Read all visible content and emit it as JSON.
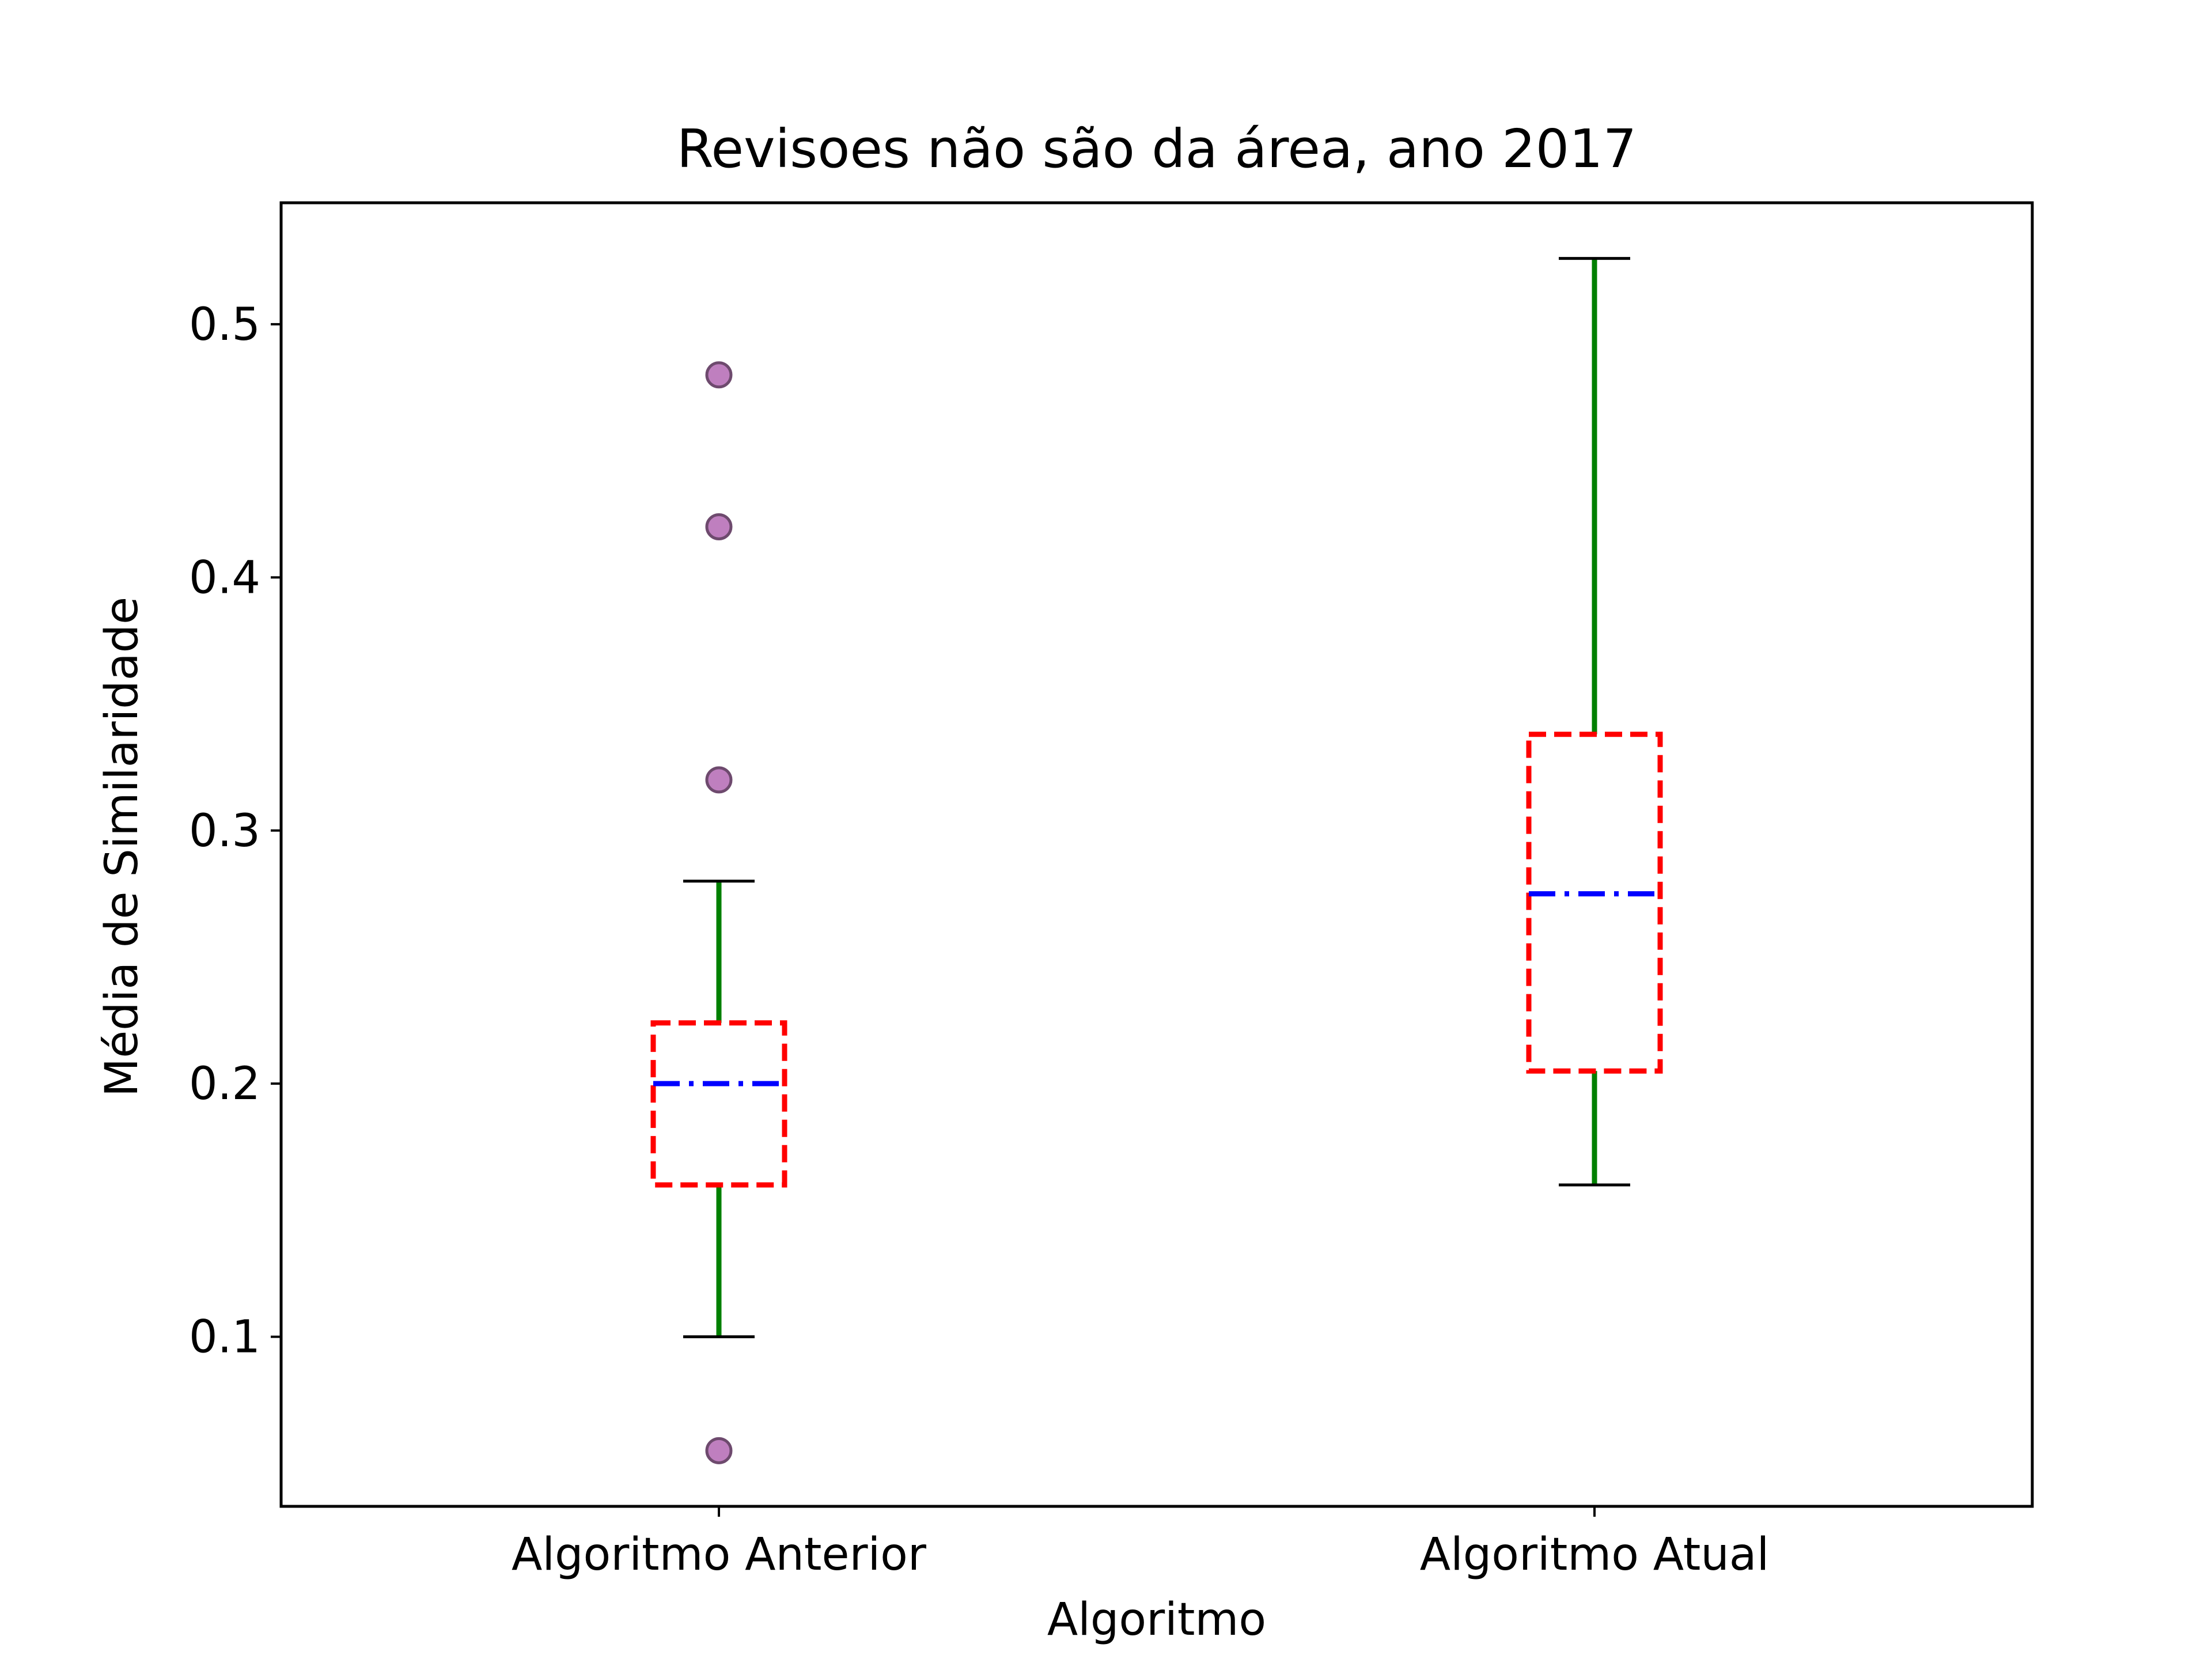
{
  "chart_data": {
    "type": "box",
    "title": "Revisoes não são da área, ano 2017",
    "xlabel": "Algoritmo",
    "ylabel": "Média de Similaridade",
    "ylim": [
      0.033,
      0.548
    ],
    "yticks": [
      0.1,
      0.2,
      0.3,
      0.4,
      0.5
    ],
    "ytick_labels": [
      "0.1",
      "0.2",
      "0.3",
      "0.4",
      "0.5"
    ],
    "grid": false,
    "categories": [
      "Algoritmo Anterior",
      "Algoritmo Atual"
    ],
    "boxes": [
      {
        "category": "Algoritmo Anterior",
        "whisker_low": 0.1,
        "q1": 0.16,
        "median": 0.2,
        "q3": 0.224,
        "whisker_high": 0.28,
        "outliers": [
          0.055,
          0.32,
          0.42,
          0.48
        ]
      },
      {
        "category": "Algoritmo Atual",
        "whisker_low": 0.16,
        "q1": 0.205,
        "median": 0.275,
        "q3": 0.338,
        "whisker_high": 0.526,
        "outliers": []
      }
    ],
    "colors": {
      "box": "#ff0000",
      "median": "#0000ff",
      "whisker": "#008000",
      "cap": "#000000",
      "outlier_fill": "#bf7fbf",
      "outlier_edge": "#6e4a6e"
    }
  }
}
